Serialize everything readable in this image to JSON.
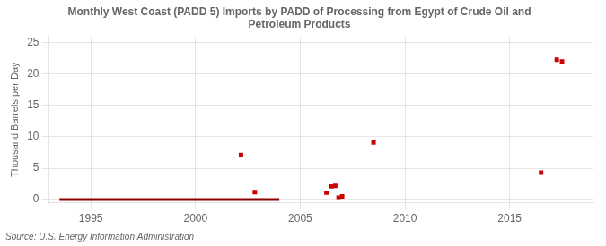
{
  "chart_data": {
    "type": "scatter",
    "title": "Monthly West Coast (PADD 5) Imports by PADD of Processing from Egypt of Crude Oil and\nPetroleum Products",
    "ylabel": "Thousand Barrels per Day",
    "source": "Source: U.S. Energy Information Administration",
    "xlim": [
      1993,
      2019
    ],
    "ylim": [
      -0.5,
      26
    ],
    "xticks": [
      1995,
      2000,
      2005,
      2010,
      2015
    ],
    "yticks": [
      0,
      5,
      10,
      15,
      20,
      25
    ],
    "grid": true,
    "series": [
      {
        "type": "scatter",
        "color": "#cc0000",
        "marker": "square",
        "x": [
          2002.17,
          2002.83,
          2006.25,
          2006.5,
          2006.67,
          2006.83,
          2007.0,
          2008.5,
          2016.5,
          2017.25,
          2017.5
        ],
        "values": [
          7.1,
          1.2,
          1.1,
          2.1,
          2.2,
          0.3,
          0.5,
          9.1,
          4.3,
          22.3,
          22.0
        ]
      },
      {
        "type": "line",
        "color": "#8b0000",
        "line_style": "solid",
        "x": [
          1993.5,
          2004.0
        ],
        "values": [
          0,
          0
        ]
      }
    ]
  }
}
